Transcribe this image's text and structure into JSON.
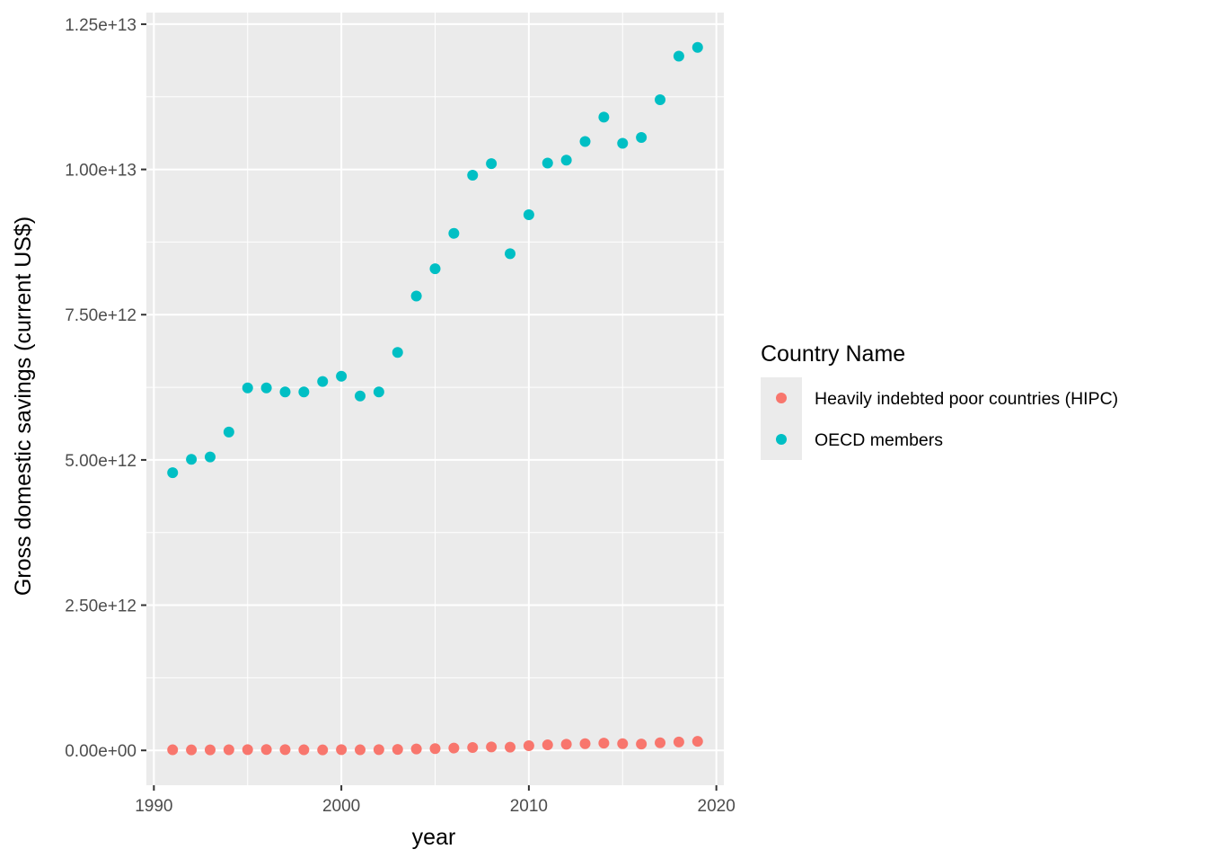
{
  "chart_data": {
    "type": "scatter",
    "xlabel": "year",
    "ylabel": "Gross domestic savings (current US$)",
    "xlim": [
      1989.6,
      2020.4
    ],
    "ylim": [
      -600000000000,
      12700000000000
    ],
    "x_ticks": [
      1990,
      2000,
      2010,
      2020
    ],
    "x_tick_labels": [
      "1990",
      "2000",
      "2010",
      "2020"
    ],
    "y_ticks": [
      0,
      2500000000000,
      5000000000000,
      7500000000000,
      10000000000000,
      12500000000000
    ],
    "y_tick_labels": [
      "0.00e+00",
      "2.50e+12",
      "5.00e+12",
      "7.50e+12",
      "1.00e+13",
      "1.25e+13"
    ],
    "grid": true,
    "legend": {
      "title": "Country Name",
      "placement": "right"
    },
    "series": [
      {
        "name": "Heavily indebted poor countries (HIPC)",
        "color": "#F8766D",
        "x": [
          1991,
          1992,
          1993,
          1994,
          1995,
          1996,
          1997,
          1998,
          1999,
          2000,
          2001,
          2002,
          2003,
          2004,
          2005,
          2006,
          2007,
          2008,
          2009,
          2010,
          2011,
          2012,
          2013,
          2014,
          2015,
          2016,
          2017,
          2018,
          2019
        ],
        "y": [
          10000000000,
          8000000000,
          9000000000,
          11000000000,
          13000000000,
          14000000000,
          12000000000,
          10000000000,
          8000000000,
          12000000000,
          10000000000,
          12000000000,
          17000000000,
          25000000000,
          30000000000,
          40000000000,
          50000000000,
          60000000000,
          55000000000,
          80000000000,
          95000000000,
          105000000000,
          115000000000,
          125000000000,
          115000000000,
          110000000000,
          130000000000,
          145000000000,
          155000000000
        ]
      },
      {
        "name": "OECD members",
        "color": "#00BFC4",
        "x": [
          1991,
          1992,
          1993,
          1994,
          1995,
          1996,
          1997,
          1998,
          1999,
          2000,
          2001,
          2002,
          2003,
          2004,
          2005,
          2006,
          2007,
          2008,
          2009,
          2010,
          2011,
          2012,
          2013,
          2014,
          2015,
          2016,
          2017,
          2018,
          2019
        ],
        "y": [
          4780000000000,
          5010000000000,
          5050000000000,
          5480000000000,
          6240000000000,
          6240000000000,
          6170000000000,
          6170000000000,
          6350000000000,
          6440000000000,
          6100000000000,
          6170000000000,
          6850000000000,
          7820000000000,
          8290000000000,
          8900000000000,
          9900000000000,
          10100000000000,
          8550000000000,
          9220000000000,
          10110000000000,
          10160000000000,
          10480000000000,
          10900000000000,
          10450000000000,
          10550000000000,
          11200000000000,
          11950000000000,
          12100000000000
        ]
      }
    ]
  }
}
